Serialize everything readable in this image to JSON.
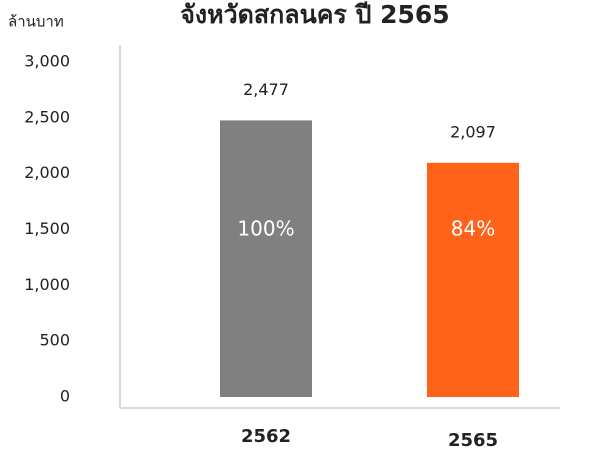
{
  "chart_data": {
    "type": "bar",
    "title": "จังหวัดสกลนคร ปี 2565",
    "y_label": "ล้านบาท",
    "categories": [
      "2562",
      "2565"
    ],
    "values": [
      2477,
      2097
    ],
    "value_labels": [
      "2,477",
      "2,097"
    ],
    "inner_labels": [
      "100%",
      "84%"
    ],
    "colors": [
      "#808080",
      "#ff6319"
    ],
    "ylim": [
      0,
      3000
    ],
    "yticks": [
      0,
      500,
      {
        "value": 1000,
        "label": "1,000"
      },
      {
        "value": 1500,
        "label": "1,500"
      },
      {
        "value": 2000,
        "label": "2,000"
      },
      {
        "value": 2500,
        "label": "2,500"
      },
      {
        "value": 3000,
        "label": "3,000"
      }
    ],
    "grid": false
  }
}
